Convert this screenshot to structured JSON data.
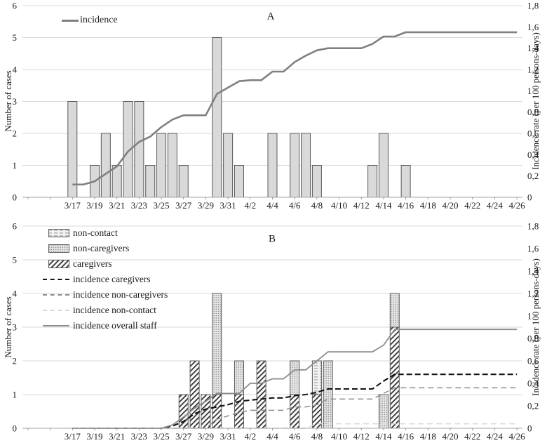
{
  "colors": {
    "bar_fill": "#d9d9d9",
    "bar_stroke": "#595959",
    "gridline": "#d9d9d9",
    "axis": "#a6a6a6",
    "incidence_line": "#808080",
    "caregivers_line": "#141414",
    "noncaregivers_line": "#8c8c8c",
    "noncontact_line": "#d9d9d9"
  },
  "chart_data": [
    {
      "panel": "A",
      "title": "A",
      "type": "bar+line",
      "grid": true,
      "legend": [
        {
          "swatch": "line-solid-gray",
          "label": "incidence"
        }
      ],
      "y_left": {
        "title": "Number of cases",
        "max": 6,
        "ticks": [
          "0",
          "1",
          "2",
          "3",
          "4",
          "5",
          "6"
        ]
      },
      "y_right": {
        "title": "Incidence rate (per 100 persons-days)",
        "max": 1.8,
        "ticks": [
          "0",
          "0,2",
          "0,4",
          "0,6",
          "0,8",
          "1",
          "1,2",
          "1,4",
          "1,6",
          "1,8"
        ]
      },
      "x_tick_labels": [
        "3/17",
        "3/19",
        "3/21",
        "3/23",
        "3/25",
        "3/27",
        "3/29",
        "3/31",
        "4/2",
        "4/4",
        "4/6",
        "4/8",
        "4/10",
        "4/12",
        "4/14",
        "4/16",
        "4/18",
        "4/20",
        "4/22",
        "4/24",
        "4/26"
      ],
      "dates": [
        "3/17",
        "3/18",
        "3/19",
        "3/20",
        "3/21",
        "3/22",
        "3/23",
        "3/24",
        "3/25",
        "3/26",
        "3/27",
        "3/28",
        "3/29",
        "3/30",
        "3/31",
        "4/1",
        "4/2",
        "4/3",
        "4/4",
        "4/5",
        "4/6",
        "4/7",
        "4/8",
        "4/9",
        "4/10",
        "4/11",
        "4/12",
        "4/13",
        "4/14",
        "4/15",
        "4/16",
        "4/17",
        "4/18",
        "4/19",
        "4/20",
        "4/21",
        "4/22",
        "4/23",
        "4/24",
        "4/25",
        "4/26"
      ],
      "bar_series": [
        {
          "name": "cases",
          "pattern": null,
          "values": [
            3,
            0,
            1,
            2,
            1,
            3,
            3,
            1,
            2,
            2,
            1,
            0,
            0,
            5,
            2,
            1,
            0,
            0,
            2,
            0,
            2,
            2,
            1,
            0,
            0,
            0,
            0,
            1,
            2,
            0,
            1,
            0,
            0,
            0,
            0,
            0,
            0,
            0,
            0,
            0,
            0
          ]
        }
      ],
      "lines": [
        {
          "name": "incidence",
          "color": "#808080",
          "dash": null,
          "width": 2.6,
          "values": [
            0.12,
            0.12,
            0.15,
            0.22,
            0.29,
            0.43,
            0.52,
            0.57,
            0.66,
            0.73,
            0.77,
            0.77,
            0.77,
            0.97,
            1.03,
            1.09,
            1.1,
            1.1,
            1.18,
            1.18,
            1.27,
            1.33,
            1.38,
            1.4,
            1.4,
            1.4,
            1.4,
            1.44,
            1.51,
            1.51,
            1.55,
            1.55,
            1.55,
            1.55,
            1.55,
            1.55,
            1.55,
            1.55,
            1.55,
            1.55,
            1.55
          ]
        }
      ]
    },
    {
      "panel": "B",
      "title": "B",
      "type": "stacked-bar+line",
      "grid": true,
      "legend": [
        {
          "swatch": "bar-dash-pattern",
          "label": "non-contact"
        },
        {
          "swatch": "bar-dot-pattern",
          "label": "non-caregivers"
        },
        {
          "swatch": "bar-hatch-pattern",
          "label": "caregivers"
        },
        {
          "swatch": "line-dashed-black",
          "label": "incidence caregivers"
        },
        {
          "swatch": "line-dashed-gray",
          "label": "incidence non-caregivers"
        },
        {
          "swatch": "line-dashed-lightgray",
          "label": "incidence non-contact"
        },
        {
          "swatch": "line-solid-gray",
          "label": "incidence overall staff"
        }
      ],
      "y_left": {
        "title": "Number of cases",
        "max": 6,
        "ticks": [
          "0",
          "1",
          "2",
          "3",
          "4",
          "5",
          "6"
        ]
      },
      "y_right": {
        "title": "Incidence rate (per 100 persons-days)",
        "max": 1.8,
        "ticks": [
          "0",
          "0,2",
          "0,4",
          "0,6",
          "0,8",
          "1",
          "1,2",
          "1,4",
          "1,6",
          "1,8"
        ]
      },
      "x_tick_labels": [
        "3/17",
        "3/19",
        "3/21",
        "3/23",
        "3/25",
        "3/27",
        "3/29",
        "3/31",
        "4/2",
        "4/4",
        "4/6",
        "4/8",
        "4/10",
        "4/12",
        "4/14",
        "4/16",
        "4/18",
        "4/20",
        "4/22",
        "4/24",
        "4/26"
      ],
      "dates": [
        "3/17",
        "3/18",
        "3/19",
        "3/20",
        "3/21",
        "3/22",
        "3/23",
        "3/24",
        "3/25",
        "3/26",
        "3/27",
        "3/28",
        "3/29",
        "3/30",
        "3/31",
        "4/1",
        "4/2",
        "4/3",
        "4/4",
        "4/5",
        "4/6",
        "4/7",
        "4/8",
        "4/9",
        "4/10",
        "4/11",
        "4/12",
        "4/13",
        "4/14",
        "4/15",
        "4/16",
        "4/17",
        "4/18",
        "4/19",
        "4/20",
        "4/21",
        "4/22",
        "4/23",
        "4/24",
        "4/25",
        "4/26"
      ],
      "bar_series": [
        {
          "name": "caregivers",
          "pattern": "hatch",
          "values": [
            0,
            0,
            0,
            0,
            0,
            0,
            0,
            0,
            0,
            0,
            1,
            2,
            1,
            1,
            0,
            1,
            0,
            2,
            0,
            0,
            1,
            0,
            1,
            0,
            0,
            0,
            0,
            0,
            0,
            3,
            0,
            0,
            0,
            0,
            0,
            0,
            0,
            0,
            0,
            0,
            0
          ]
        },
        {
          "name": "non-caregivers",
          "pattern": "dots",
          "values": [
            0,
            0,
            0,
            0,
            0,
            0,
            0,
            0,
            0,
            0,
            0,
            0,
            0,
            3,
            0,
            1,
            0,
            0,
            0,
            0,
            1,
            0,
            0,
            2,
            0,
            0,
            0,
            0,
            1,
            1,
            0,
            0,
            0,
            0,
            0,
            0,
            0,
            0,
            0,
            0,
            0
          ]
        },
        {
          "name": "non-contact",
          "pattern": "dash",
          "values": [
            0,
            0,
            0,
            0,
            0,
            0,
            0,
            0,
            0,
            0,
            0,
            0,
            0,
            0,
            0,
            0,
            0,
            0,
            0,
            0,
            0,
            0,
            1,
            0,
            0,
            0,
            0,
            0,
            0,
            0,
            0,
            0,
            0,
            0,
            0,
            0,
            0,
            0,
            0,
            0,
            0
          ]
        }
      ],
      "lines": [
        {
          "name": "incidence caregivers",
          "color": "#141414",
          "dash": "8,4",
          "width": 2.1,
          "values": [
            0,
            0,
            0,
            0,
            0,
            0,
            0,
            0,
            0,
            0.02,
            0.06,
            0.13,
            0.17,
            0.19,
            0.21,
            0.24,
            0.25,
            0.26,
            0.27,
            0.27,
            0.29,
            0.3,
            0.32,
            0.35,
            0.35,
            0.35,
            0.35,
            0.35,
            0.42,
            0.48,
            0.48,
            0.48,
            0.48,
            0.48,
            0.48,
            0.48,
            0.48,
            0.48,
            0.48,
            0.48,
            0.48
          ]
        },
        {
          "name": "incidence non-caregivers",
          "color": "#8c8c8c",
          "dash": "8,5",
          "width": 1.5,
          "values": [
            0,
            0,
            0,
            0,
            0,
            0,
            0,
            0,
            0,
            0,
            0,
            0,
            0,
            0.08,
            0.11,
            0.14,
            0.16,
            0.16,
            0.16,
            0.16,
            0.19,
            0.19,
            0.21,
            0.26,
            0.26,
            0.26,
            0.26,
            0.26,
            0.31,
            0.36,
            0.36,
            0.36,
            0.36,
            0.36,
            0.36,
            0.36,
            0.36,
            0.36,
            0.36,
            0.36,
            0.36
          ]
        },
        {
          "name": "incidence non-contact",
          "color": "#d9d9d9",
          "dash": "8,5",
          "width": 1.5,
          "values": [
            0,
            0,
            0,
            0,
            0,
            0,
            0,
            0,
            0,
            0,
            0,
            0,
            0,
            0,
            0,
            0,
            0,
            0,
            0,
            0,
            0,
            0,
            0.04,
            0.04,
            0.04,
            0.04,
            0.04,
            0.04,
            0.04,
            0.04,
            0.04,
            0.04,
            0.04,
            0.04,
            0.04,
            0.04,
            0.04,
            0.04,
            0.04,
            0.04,
            0.04
          ]
        },
        {
          "name": "incidence overall staff",
          "color": "#8c8c8c",
          "dash": null,
          "width": 1.8,
          "values": [
            0,
            0,
            0,
            0,
            0,
            0,
            0,
            0,
            0,
            0.03,
            0.1,
            0.18,
            0.24,
            0.31,
            0.31,
            0.31,
            0.4,
            0.4,
            0.44,
            0.44,
            0.52,
            0.52,
            0.6,
            0.68,
            0.68,
            0.68,
            0.68,
            0.68,
            0.74,
            0.88,
            0.88,
            0.88,
            0.88,
            0.88,
            0.88,
            0.88,
            0.88,
            0.88,
            0.88,
            0.88,
            0.88
          ]
        }
      ]
    }
  ]
}
